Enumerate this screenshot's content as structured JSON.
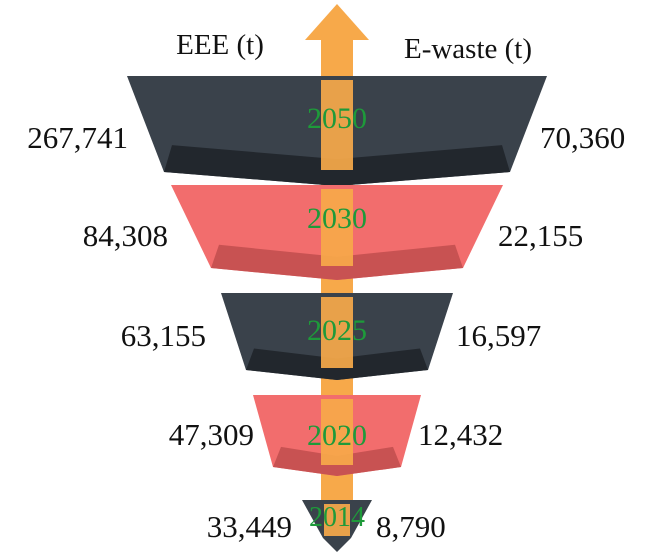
{
  "header": {
    "left_label": "EEE (t)",
    "right_label": "E-waste (t)"
  },
  "colors": {
    "dark": "#3a424b",
    "dark_shade": "#22272d",
    "red": "#f26d6d",
    "red_shade": "#c85252",
    "arrow": "#f7a94a",
    "year_text": "#1e9a3a"
  },
  "tiers": [
    {
      "year": "2050",
      "eee": "267,741",
      "ewaste": "70,360",
      "color": "dark"
    },
    {
      "year": "2030",
      "eee": "84,308",
      "ewaste": "22,155",
      "color": "red"
    },
    {
      "year": "2025",
      "eee": "63,155",
      "ewaste": "16,597",
      "color": "dark"
    },
    {
      "year": "2020",
      "eee": "47,309",
      "ewaste": "12,432",
      "color": "red"
    },
    {
      "year": "2014",
      "eee": "33,449",
      "ewaste": "8,790",
      "color": "dark"
    }
  ]
}
